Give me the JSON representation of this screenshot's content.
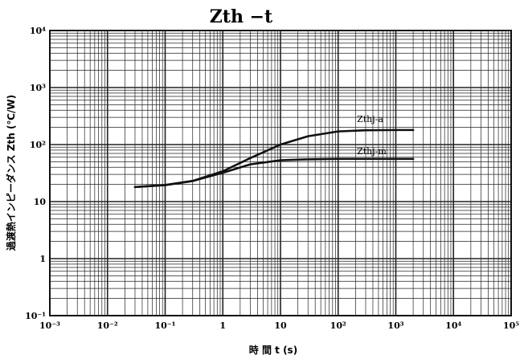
{
  "chart_data": {
    "type": "line",
    "title": "Zth −t",
    "xlabel": "時 間 t (s)",
    "ylabel": "過渡熱インピーダンス Zth (℃/W)",
    "x_scale": "log",
    "y_scale": "log",
    "xlim": [
      0.001,
      100000
    ],
    "ylim": [
      0.1,
      10000
    ],
    "grid": true,
    "x_ticks": [
      "10⁻³",
      "10⁻²",
      "10⁻¹",
      "1",
      "10",
      "10²",
      "10³",
      "10⁴",
      "10⁵"
    ],
    "y_ticks": [
      "10⁻¹",
      "1",
      "10",
      "10²",
      "10³",
      "10⁴"
    ],
    "series": [
      {
        "name": "Zthj-a",
        "x": [
          0.03,
          0.1,
          0.3,
          1,
          3,
          10,
          30,
          100,
          300,
          1000,
          2000
        ],
        "y": [
          18,
          19.5,
          23,
          34,
          58,
          100,
          140,
          170,
          178,
          180,
          180
        ]
      },
      {
        "name": "Zthj-m",
        "x": [
          0.03,
          0.1,
          0.3,
          1,
          3,
          10,
          30,
          100,
          300,
          1000,
          2000
        ],
        "y": [
          18,
          19.5,
          23,
          32,
          45,
          53,
          55,
          56,
          56,
          56,
          56
        ]
      }
    ]
  },
  "colors": {
    "line": "#111111",
    "grid": "#222222",
    "background": "#ffffff"
  }
}
